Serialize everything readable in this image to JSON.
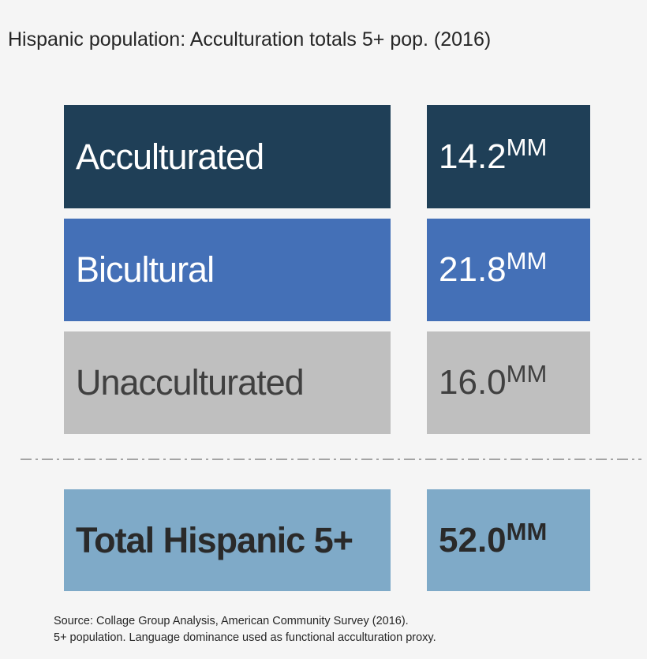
{
  "chart_data": {
    "type": "table",
    "title": "Hispanic population: Acculturation totals 5+ pop. (2016)",
    "unit": "MM",
    "rows": [
      {
        "label": "Acculturated",
        "value": 14.2,
        "value_text": "14.2",
        "color": "#1f3f57"
      },
      {
        "label": "Bicultural",
        "value": 21.8,
        "value_text": "21.8",
        "color": "#4470b7"
      },
      {
        "label": "Unacculturated",
        "value": 16.0,
        "value_text": "16.0",
        "color": "#bfbfbf"
      }
    ],
    "total": {
      "label": "Total Hispanic 5+",
      "value": 52.0,
      "value_text": "52.0",
      "color": "#7faac8"
    },
    "source_lines": [
      "Source: Collage Group Analysis, American Community Survey (2016).",
      "5+ population. Language dominance used as functional acculturation proxy."
    ]
  }
}
